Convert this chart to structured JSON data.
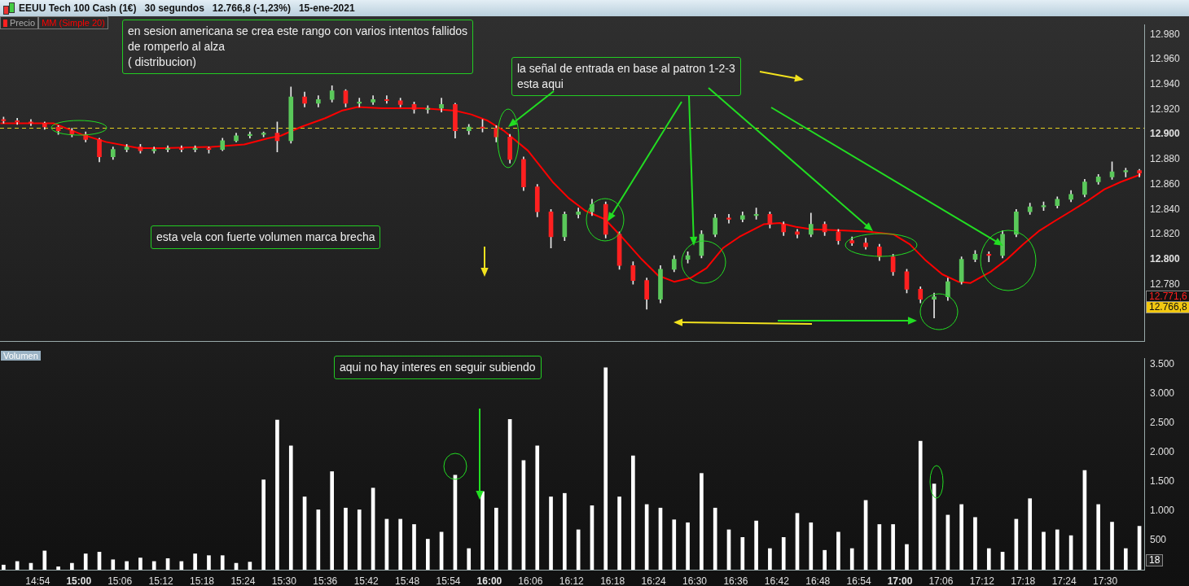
{
  "chart_data": [
    {
      "type": "candlestick",
      "title": "EEUU Tech 100 Cash (1€)   30 segundos   12.766,8 (-1,23%)   15-ene-2021",
      "legend": "top left",
      "tick_labels": "y",
      "x": [
        14.8167,
        14.85,
        14.8833,
        14.9167,
        14.95,
        14.9833,
        15.0167,
        15.05,
        15.0833,
        15.1167,
        15.15,
        15.1833,
        15.2167,
        15.25,
        15.2833,
        15.3167,
        15.35,
        15.3833,
        15.4167,
        15.45,
        15.4833,
        15.5167,
        15.55,
        15.5833,
        15.6167,
        15.65,
        15.6833,
        15.7167,
        15.75,
        15.7833,
        15.8167,
        15.85,
        15.8833,
        15.9167,
        15.95,
        15.9833,
        16.0167,
        16.05,
        16.0833,
        16.1167,
        16.15,
        16.1833,
        16.2167,
        16.25,
        16.2833,
        16.3167,
        16.35,
        16.3833,
        16.4167,
        16.45,
        16.4833,
        16.5167,
        16.55,
        16.5833,
        16.6167,
        16.65,
        16.6833,
        16.7167,
        16.75,
        16.7833,
        16.8167,
        16.85,
        16.8833,
        16.9167,
        16.95,
        16.9833,
        17.0167,
        17.05,
        17.0833,
        17.1167,
        17.15,
        17.1833,
        17.2167,
        17.25,
        17.2833,
        17.3167,
        17.35,
        17.3833,
        17.4167,
        17.45,
        17.4833,
        17.5167,
        17.55,
        17.5833
      ],
      "series": [
        {
          "name": "Precio",
          "ohlc": [
            [
              12912,
              12914,
              12909,
              12911
            ],
            [
              12911,
              12913,
              12908,
              12910
            ],
            [
              12910,
              12912,
              12907,
              12909
            ],
            [
              12909,
              12910,
              12904,
              12906
            ],
            [
              12906,
              12907,
              12900,
              12903
            ],
            [
              12903,
              12905,
              12898,
              12900
            ],
            [
              12900,
              12902,
              12894,
              12896
            ],
            [
              12896,
              12897,
              12878,
              12882
            ],
            [
              12882,
              12890,
              12880,
              12888
            ],
            [
              12888,
              12892,
              12886,
              12890
            ],
            [
              12890,
              12892,
              12885,
              12887
            ],
            [
              12887,
              12890,
              12885,
              12888
            ],
            [
              12888,
              12891,
              12886,
              12889
            ],
            [
              12889,
              12891,
              12886,
              12888
            ],
            [
              12888,
              12891,
              12886,
              12889
            ],
            [
              12889,
              12890,
              12885,
              12888
            ],
            [
              12888,
              12897,
              12887,
              12895
            ],
            [
              12895,
              12901,
              12894,
              12899
            ],
            [
              12899,
              12902,
              12897,
              12900
            ],
            [
              12900,
              12902,
              12898,
              12901
            ],
            [
              12901,
              12910,
              12886,
              12895
            ],
            [
              12895,
              12938,
              12893,
              12930
            ],
            [
              12930,
              12934,
              12922,
              12925
            ],
            [
              12925,
              12931,
              12922,
              12928
            ],
            [
              12928,
              12939,
              12926,
              12935
            ],
            [
              12935,
              12936,
              12922,
              12925
            ],
            [
              12925,
              12929,
              12922,
              12926
            ],
            [
              12926,
              12931,
              12924,
              12928
            ],
            [
              12928,
              12931,
              12925,
              12927
            ],
            [
              12927,
              12929,
              12922,
              12924
            ],
            [
              12924,
              12926,
              12917,
              12920
            ],
            [
              12920,
              12923,
              12917,
              12921
            ],
            [
              12921,
              12929,
              12918,
              12924
            ],
            [
              12924,
              12925,
              12897,
              12903
            ],
            [
              12903,
              12908,
              12900,
              12906
            ],
            [
              12906,
              12912,
              12902,
              12905
            ],
            [
              12905,
              12907,
              12894,
              12898
            ],
            [
              12898,
              12900,
              12877,
              12880
            ],
            [
              12880,
              12882,
              12855,
              12858
            ],
            [
              12858,
              12860,
              12834,
              12838
            ],
            [
              12838,
              12840,
              12809,
              12818
            ],
            [
              12818,
              12838,
              12815,
              12836
            ],
            [
              12836,
              12841,
              12833,
              12838
            ],
            [
              12838,
              12848,
              12835,
              12844
            ],
            [
              12844,
              12846,
              12817,
              12820
            ],
            [
              12820,
              12822,
              12792,
              12795
            ],
            [
              12795,
              12798,
              12780,
              12783
            ],
            [
              12783,
              12785,
              12760,
              12768
            ],
            [
              12768,
              12795,
              12765,
              12792
            ],
            [
              12792,
              12803,
              12790,
              12800
            ],
            [
              12800,
              12806,
              12797,
              12803
            ],
            [
              12803,
              12823,
              12801,
              12820
            ],
            [
              12820,
              12836,
              12818,
              12833
            ],
            [
              12833,
              12836,
              12829,
              12832
            ],
            [
              12832,
              12838,
              12830,
              12835
            ],
            [
              12835,
              12841,
              12832,
              12836
            ],
            [
              12836,
              12838,
              12825,
              12828
            ],
            [
              12828,
              12830,
              12819,
              12822
            ],
            [
              12822,
              12824,
              12817,
              12820
            ],
            [
              12820,
              12837,
              12818,
              12828
            ],
            [
              12828,
              12830,
              12819,
              12822
            ],
            [
              12822,
              12824,
              12812,
              12815
            ],
            [
              12815,
              12818,
              12811,
              12813
            ],
            [
              12813,
              12817,
              12808,
              12810
            ],
            [
              12810,
              12812,
              12799,
              12802
            ],
            [
              12802,
              12804,
              12787,
              12790
            ],
            [
              12790,
              12792,
              12773,
              12776
            ],
            [
              12776,
              12778,
              12765,
              12768
            ],
            [
              12768,
              12773,
              12753,
              12770
            ],
            [
              12770,
              12785,
              12767,
              12782
            ],
            [
              12782,
              12802,
              12780,
              12800
            ],
            [
              12800,
              12807,
              12798,
              12804
            ],
            [
              12804,
              12806,
              12798,
              12803
            ],
            [
              12803,
              12823,
              12801,
              12820
            ],
            [
              12820,
              12840,
              12818,
              12838
            ],
            [
              12838,
              12845,
              12836,
              12842
            ],
            [
              12842,
              12846,
              12839,
              12843
            ],
            [
              12843,
              12850,
              12841,
              12848
            ],
            [
              12848,
              12855,
              12846,
              12852
            ],
            [
              12852,
              12864,
              12850,
              12862
            ],
            [
              12862,
              12868,
              12860,
              12866
            ],
            [
              12866,
              12878,
              12864,
              12870
            ],
            [
              12870,
              12873,
              12866,
              12871
            ],
            [
              12871,
              12872,
              12866,
              12869
            ]
          ],
          "colors": [
            "#ff2020",
            "#ff2020",
            "#ff2020",
            "#ff2020",
            "#ff2020",
            "#ff2020",
            "#ff2020",
            "#ff2020",
            "#5ac85a",
            "#5ac85a",
            "#ff2020",
            "#5ac85a",
            "#5ac85a",
            "#ff2020",
            "#5ac85a",
            "#ff2020",
            "#5ac85a",
            "#5ac85a",
            "#5ac85a",
            "#5ac85a",
            "#ff2020",
            "#5ac85a",
            "#ff2020",
            "#5ac85a",
            "#5ac85a",
            "#ff2020",
            "#5ac85a",
            "#5ac85a",
            "#ff2020",
            "#ff2020",
            "#ff2020",
            "#5ac85a",
            "#5ac85a",
            "#ff2020",
            "#5ac85a",
            "#ff2020",
            "#ff2020",
            "#ff2020",
            "#ff2020",
            "#ff2020",
            "#ff2020",
            "#5ac85a",
            "#5ac85a",
            "#5ac85a",
            "#ff2020",
            "#ff2020",
            "#ff2020",
            "#ff2020",
            "#5ac85a",
            "#5ac85a",
            "#5ac85a",
            "#5ac85a",
            "#5ac85a",
            "#ff2020",
            "#5ac85a",
            "#5ac85a",
            "#ff2020",
            "#ff2020",
            "#ff2020",
            "#5ac85a",
            "#ff2020",
            "#ff2020",
            "#ff2020",
            "#ff2020",
            "#ff2020",
            "#ff2020",
            "#ff2020",
            "#ff2020",
            "#5ac85a",
            "#5ac85a",
            "#5ac85a",
            "#5ac85a",
            "#ff2020",
            "#5ac85a",
            "#5ac85a",
            "#5ac85a",
            "#5ac85a",
            "#5ac85a",
            "#5ac85a",
            "#5ac85a",
            "#5ac85a",
            "#5ac85a",
            "#5ac85a",
            "#ff2020"
          ]
        },
        {
          "type": "line",
          "name": "MM (Simple 20)",
          "color": "#ff0000",
          "x": [
            14.809,
            14.938,
            15.007,
            15.066,
            15.146,
            15.205,
            15.323,
            15.403,
            15.462,
            15.492,
            15.541,
            15.6,
            15.64,
            15.679,
            15.739,
            15.837,
            15.917,
            15.956,
            15.996,
            16.035,
            16.094,
            16.154,
            16.193,
            16.233,
            16.282,
            16.322,
            16.371,
            16.411,
            16.45,
            16.49,
            16.529,
            16.569,
            16.609,
            16.668,
            16.707,
            16.747,
            16.786,
            16.865,
            16.925,
            16.984,
            17.024,
            17.063,
            17.103,
            17.142,
            17.172,
            17.221,
            17.261,
            17.3,
            17.34,
            17.379,
            17.419,
            17.458,
            17.498,
            17.538,
            17.587
          ],
          "values": [
            12909,
            12909,
            12900,
            12894,
            12889,
            12889,
            12890,
            12892,
            12897,
            12899,
            12906,
            12913,
            12919,
            12922,
            12921,
            12921,
            12919,
            12916,
            12911,
            12903,
            12887,
            12862,
            12849,
            12839,
            12832,
            12818,
            12800,
            12787,
            12782,
            12785,
            12793,
            12809,
            12818,
            12828,
            12829,
            12826,
            12824,
            12823,
            12822,
            12820,
            12812,
            12799,
            12788,
            12782,
            12781,
            12790,
            12800,
            12812,
            12823,
            12831,
            12839,
            12847,
            12856,
            12862,
            12868
          ]
        }
      ],
      "xlim": [
        14.808,
        17.595
      ],
      "xticks": [
        {
          "value": 14.9,
          "label": null
        },
        {
          "value": 15,
          "label": null
        },
        {
          "value": 15.1,
          "label": null
        },
        {
          "value": 15.2,
          "label": null
        },
        {
          "value": 15.3,
          "label": null
        },
        {
          "value": 15.4,
          "label": null
        },
        {
          "value": 15.5,
          "label": null
        },
        {
          "value": 15.6,
          "label": null
        },
        {
          "value": 15.7,
          "label": null
        },
        {
          "value": 15.8,
          "label": null
        },
        {
          "value": 15.9,
          "label": null
        },
        {
          "value": 16,
          "label": null
        },
        {
          "value": 16.1,
          "label": null
        },
        {
          "value": 16.2,
          "label": null
        },
        {
          "value": 16.3,
          "label": null
        },
        {
          "value": 16.4,
          "label": null
        },
        {
          "value": 16.5,
          "label": null
        },
        {
          "value": 16.6,
          "label": null
        },
        {
          "value": 16.7,
          "label": null
        },
        {
          "value": 16.8,
          "label": null
        },
        {
          "value": 16.9,
          "label": null
        },
        {
          "value": 17,
          "label": null
        },
        {
          "value": 17.1,
          "label": null
        },
        {
          "value": 17.2,
          "label": null
        },
        {
          "value": 17.3,
          "label": null
        },
        {
          "value": 17.4,
          "label": null
        },
        {
          "value": 17.5,
          "label": null
        }
      ],
      "ylim": [
        12734,
        12988
      ],
      "yticks": [
        {
          "value": 12780,
          "label": "12.780"
        },
        {
          "value": 12800,
          "label": "12.800"
        },
        {
          "value": 12820,
          "label": "12.820"
        },
        {
          "value": 12840,
          "label": "12.840"
        },
        {
          "value": 12860,
          "label": "12.860"
        },
        {
          "value": 12880,
          "label": "12.880"
        },
        {
          "value": 12900,
          "label": "12.900"
        },
        {
          "value": 12920,
          "label": "12.920"
        },
        {
          "value": 12940,
          "label": "12.940"
        },
        {
          "value": 12960,
          "label": "12.960"
        },
        {
          "value": 12980,
          "label": "12.980"
        }
      ],
      "ref_lines": [
        {
          "axis": "y",
          "value": 12905,
          "color": "#e6d21e",
          "line_style": "dashed"
        }
      ],
      "annotations": [
        "en sesion americana se crea este rango con varios intentos fallidos\nde romperlo al alza\n( distribucion)",
        "la señal de entrada en base al patron 1-2-3\nesta aqui",
        "esta vela con fuerte volumen marca brecha",
        "12.771,6",
        "12.766,8"
      ]
    },
    {
      "type": "bar",
      "title": "Volumen",
      "color": "#ffffff",
      "x": [
        14.8167,
        14.85,
        14.8833,
        14.9167,
        14.95,
        14.9833,
        15.0167,
        15.05,
        15.0833,
        15.1167,
        15.15,
        15.1833,
        15.2167,
        15.25,
        15.2833,
        15.3167,
        15.35,
        15.3833,
        15.4167,
        15.45,
        15.4833,
        15.5167,
        15.55,
        15.5833,
        15.6167,
        15.65,
        15.6833,
        15.7167,
        15.75,
        15.7833,
        15.8167,
        15.85,
        15.8833,
        15.9167,
        15.95,
        15.9833,
        16.0167,
        16.05,
        16.0833,
        16.1167,
        16.15,
        16.1833,
        16.2167,
        16.25,
        16.2833,
        16.3167,
        16.35,
        16.3833,
        16.4167,
        16.45,
        16.4833,
        16.5167,
        16.55,
        16.5833,
        16.6167,
        16.65,
        16.6833,
        16.7167,
        16.75,
        16.7833,
        16.8167,
        16.85,
        16.8833,
        16.9167,
        16.95,
        16.9833,
        17.0167,
        17.05,
        17.0833,
        17.1167,
        17.15,
        17.1833,
        17.2167,
        17.25,
        17.2833,
        17.3167,
        17.35,
        17.3833,
        17.4167,
        17.45,
        17.4833,
        17.5167,
        17.55,
        17.5833
      ],
      "values": [
        80,
        140,
        110,
        320,
        50,
        110,
        270,
        300,
        170,
        140,
        200,
        140,
        190,
        140,
        270,
        240,
        240,
        110,
        130,
        1530,
        2550,
        2110,
        1240,
        1020,
        1670,
        1050,
        1020,
        1390,
        860,
        860,
        770,
        520,
        640,
        1610,
        360,
        1330,
        1050,
        2560,
        1860,
        2110,
        1240,
        1300,
        680,
        1090,
        3440,
        1240,
        1940,
        1110,
        1050,
        850,
        800,
        1640,
        1050,
        680,
        550,
        830,
        360,
        550,
        960,
        800,
        330,
        640,
        360,
        1180,
        770,
        770,
        430,
        2190,
        1460,
        930,
        1110,
        890,
        360,
        300,
        860,
        1210,
        640,
        680,
        580,
        1690,
        1110,
        810,
        360,
        740
      ],
      "xlim": [
        14.808,
        17.595
      ],
      "xticks": [
        {
          "value": 14.9,
          "label": "14:54"
        },
        {
          "value": 15,
          "label": "15:00"
        },
        {
          "value": 15.1,
          "label": "15:06"
        },
        {
          "value": 15.2,
          "label": "15:12"
        },
        {
          "value": 15.3,
          "label": "15:18"
        },
        {
          "value": 15.4,
          "label": "15:24"
        },
        {
          "value": 15.5,
          "label": "15:30"
        },
        {
          "value": 15.6,
          "label": "15:36"
        },
        {
          "value": 15.7,
          "label": "15:42"
        },
        {
          "value": 15.8,
          "label": "15:48"
        },
        {
          "value": 15.9,
          "label": "15:54"
        },
        {
          "value": 16,
          "label": "16:00"
        },
        {
          "value": 16.1,
          "label": "16:06"
        },
        {
          "value": 16.2,
          "label": "16:12"
        },
        {
          "value": 16.3,
          "label": "16:18"
        },
        {
          "value": 16.4,
          "label": "16:24"
        },
        {
          "value": 16.5,
          "label": "16:30"
        },
        {
          "value": 16.6,
          "label": "16:36"
        },
        {
          "value": 16.7,
          "label": "16:42"
        },
        {
          "value": 16.8,
          "label": "16:48"
        },
        {
          "value": 16.9,
          "label": "16:54"
        },
        {
          "value": 17,
          "label": "17:00"
        },
        {
          "value": 17.1,
          "label": "17:06"
        },
        {
          "value": 17.2,
          "label": "17:12"
        },
        {
          "value": 17.3,
          "label": "17:18"
        },
        {
          "value": 17.4,
          "label": "17:24"
        },
        {
          "value": 17.5,
          "label": "17:30"
        }
      ],
      "ylim": [
        0,
        3600
      ],
      "yticks": [
        500,
        {
          "value": 1000,
          "label": "1.000"
        },
        {
          "value": 1500,
          "label": "1.500"
        },
        {
          "value": 2000,
          "label": "2.000"
        },
        {
          "value": 2500,
          "label": "2.500"
        },
        {
          "value": 3000,
          "label": "3.000"
        },
        {
          "value": 3500,
          "label": "3.500"
        }
      ],
      "annotations": [
        "aqui no hay interes en seguir subiendo",
        "18"
      ]
    }
  ]
}
